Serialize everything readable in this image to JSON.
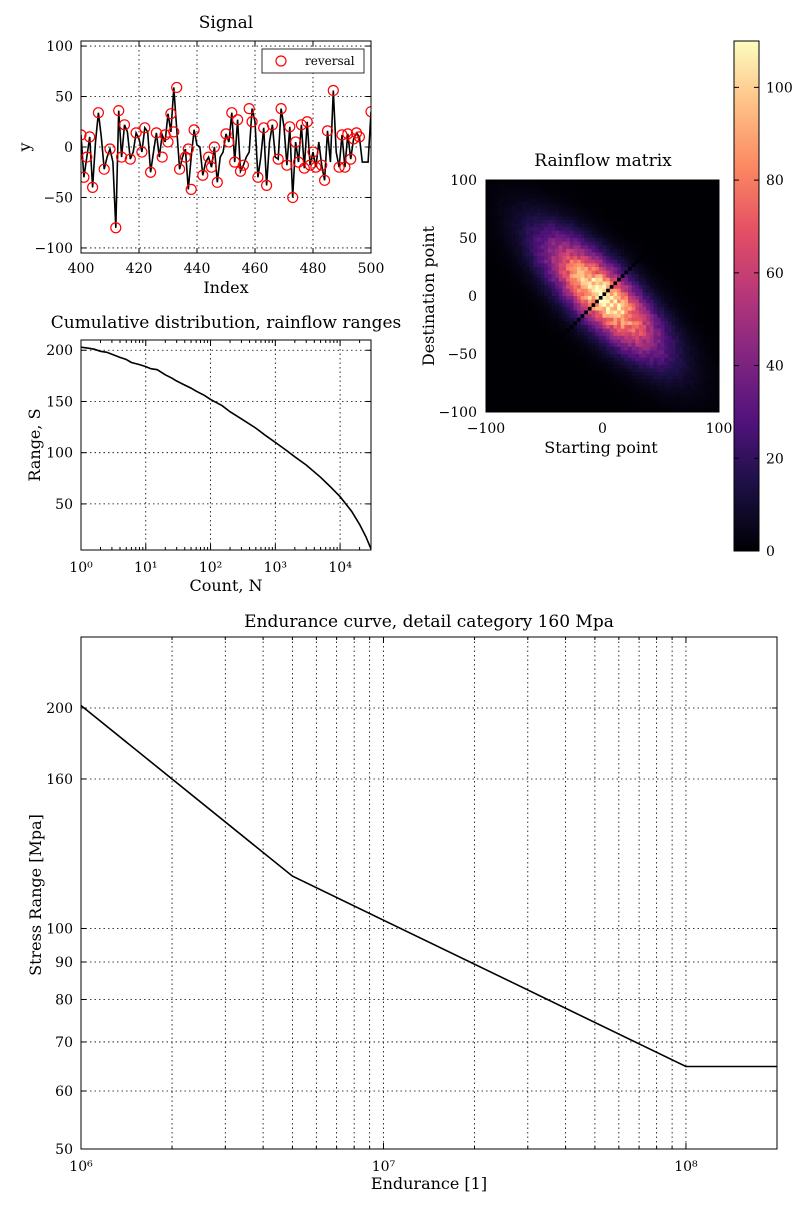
{
  "chart_data": [
    {
      "id": "signal",
      "type": "line",
      "title": "Signal",
      "xlabel": "Index",
      "ylabel": "y",
      "xlim": [
        400,
        500
      ],
      "ylim": [
        -105,
        105
      ],
      "x_ticks": [
        400,
        420,
        440,
        460,
        480,
        500
      ],
      "y_ticks": [
        100,
        50,
        0,
        -50,
        -100
      ],
      "x_tick_labels": [
        "400",
        "420",
        "440",
        "460",
        "480",
        "500"
      ],
      "y_tick_labels": [
        "100",
        "50",
        "0",
        "−50",
        "−100"
      ],
      "grid": true,
      "legend": {
        "position": "top-right",
        "entries": [
          "reversal"
        ]
      },
      "series": [
        {
          "name": "signal",
          "color": "#000000",
          "x": [
            400,
            401,
            402,
            403,
            404,
            405,
            406,
            407,
            408,
            409,
            410,
            411,
            412,
            413,
            414,
            415,
            416,
            417,
            418,
            419,
            420,
            421,
            422,
            423,
            424,
            425,
            426,
            427,
            428,
            429,
            430,
            431,
            432,
            433,
            434,
            435,
            436,
            437,
            438,
            439,
            440,
            441,
            442,
            443,
            444,
            445,
            446,
            447,
            448,
            449,
            450,
            451,
            452,
            453,
            454,
            455,
            456,
            457,
            458,
            459,
            460,
            461,
            462,
            463,
            464,
            465,
            466,
            467,
            468,
            469,
            470,
            471,
            472,
            473,
            474,
            475,
            476,
            477,
            478,
            479,
            480,
            481,
            482,
            483,
            484,
            485,
            486,
            487,
            488,
            489,
            490,
            491,
            492,
            493,
            494,
            495,
            496,
            497,
            498,
            499,
            500
          ],
          "y": [
            12,
            -30,
            -10,
            10,
            -40,
            5,
            34,
            10,
            -22,
            -10,
            -2,
            -15,
            -80,
            36,
            -10,
            22,
            15,
            -12,
            -5,
            14,
            8,
            -5,
            19,
            15,
            -25,
            -5,
            14,
            -10,
            12,
            5,
            33,
            15,
            59,
            18,
            -22,
            -10,
            -2,
            -42,
            -10,
            17,
            2,
            0,
            -28,
            -15,
            -10,
            -20,
            0,
            -35,
            -10,
            -5,
            13,
            5,
            34,
            -15,
            27,
            -24,
            -18,
            -10,
            -5,
            38,
            25,
            -30,
            -10,
            19,
            -38,
            5,
            22,
            -10,
            -12,
            38,
            20,
            -18,
            20,
            -50,
            5,
            -15,
            22,
            -21,
            25,
            -18,
            -5,
            -20,
            5,
            -18,
            -33,
            16,
            -15,
            56,
            -5,
            -20,
            12,
            -20,
            13,
            -12,
            8,
            14,
            10,
            -15,
            -15,
            -15,
            35
          ]
        },
        {
          "name": "reversal",
          "color": "#ff0000",
          "x": [
            400,
            401,
            402,
            403,
            404,
            406,
            408,
            410,
            412,
            413,
            414,
            415,
            417,
            419,
            421,
            422,
            424,
            426,
            428,
            429,
            430,
            431,
            432,
            433,
            434,
            436,
            437,
            438,
            439,
            442,
            444,
            445,
            446,
            447,
            450,
            451,
            452,
            453,
            454,
            455,
            456,
            458,
            459,
            461,
            463,
            464,
            466,
            468,
            469,
            471,
            472,
            473,
            474,
            475,
            476,
            477,
            478,
            479,
            480,
            481,
            483,
            484,
            485,
            487,
            489,
            490,
            491,
            492,
            493,
            494,
            495,
            496,
            500
          ],
          "y": [
            12,
            -30,
            -10,
            10,
            -40,
            34,
            -22,
            -2,
            -80,
            36,
            -10,
            22,
            -12,
            14,
            -5,
            19,
            -25,
            14,
            -10,
            12,
            5,
            33,
            15,
            59,
            -22,
            -10,
            -2,
            -42,
            17,
            -28,
            -10,
            -20,
            0,
            -35,
            13,
            5,
            34,
            -15,
            27,
            -24,
            -18,
            38,
            25,
            -30,
            19,
            -38,
            22,
            -12,
            38,
            -18,
            20,
            -50,
            5,
            -15,
            22,
            -21,
            25,
            -18,
            -5,
            -20,
            -18,
            -33,
            16,
            56,
            -20,
            12,
            -20,
            13,
            -12,
            8,
            14,
            10,
            35
          ]
        }
      ]
    },
    {
      "id": "cumulative",
      "type": "line",
      "title": "Cumulative distribution, rainflow ranges",
      "xlabel": "Count, N",
      "ylabel": "Range, S",
      "xscale": "log",
      "xlim": [
        1,
        30000
      ],
      "ylim": [
        5,
        210
      ],
      "x_ticks": [
        1,
        10,
        100,
        1000,
        10000
      ],
      "x_tick_labels": [
        "10⁰",
        "10¹",
        "10²",
        "10³",
        "10⁴"
      ],
      "y_ticks": [
        200,
        150,
        100,
        50
      ],
      "y_tick_labels": [
        "200",
        "150",
        "100",
        "50"
      ],
      "grid": true,
      "series": [
        {
          "name": "cumulative",
          "color": "#000000",
          "x": [
            1,
            1.3,
            1.6,
            2,
            2.5,
            3,
            4,
            5,
            6,
            8,
            10,
            12,
            15,
            20,
            25,
            30,
            40,
            50,
            60,
            80,
            100,
            150,
            200,
            300,
            500,
            700,
            1000,
            1500,
            2000,
            3000,
            5000,
            7000,
            10000,
            15000,
            20000,
            25000,
            30000
          ],
          "y": [
            203,
            202,
            201,
            199,
            198,
            196,
            193,
            191,
            188,
            186,
            184,
            182,
            181,
            176,
            173,
            170,
            166,
            163,
            160,
            156,
            152,
            146,
            140,
            133,
            124,
            117,
            110,
            102,
            96,
            88,
            76,
            67,
            57,
            43,
            30,
            18,
            6
          ]
        }
      ]
    },
    {
      "id": "rainflow-matrix",
      "type": "heatmap",
      "title": "Rainflow matrix",
      "xlabel": "Starting point",
      "ylabel": "Destination point",
      "xlim": [
        -100,
        100
      ],
      "ylim": [
        -100,
        100
      ],
      "bins": 64,
      "x_ticks": [
        -100,
        0,
        100
      ],
      "x_tick_labels": [
        "−100",
        "0",
        "100"
      ],
      "y_ticks": [
        100,
        50,
        0,
        -50,
        -100
      ],
      "y_tick_labels": [
        "100",
        "50",
        "0",
        "−50",
        "−100"
      ],
      "colormap": "magma",
      "colorbar": {
        "range": [
          0,
          110
        ],
        "ticks": [
          0,
          20,
          40,
          60,
          80,
          100
        ],
        "tick_labels": [
          "0",
          "20",
          "40",
          "60",
          "80",
          "100"
        ]
      },
      "distribution": {
        "center": [
          0,
          0
        ],
        "major_axis": "anti-diagonal",
        "sigma_major": 45,
        "sigma_minor": 16,
        "peak": 108,
        "lobes": [
          [
            -25,
            25
          ],
          [
            25,
            -25
          ]
        ],
        "diagonal_zero": true
      }
    },
    {
      "id": "endurance",
      "type": "line",
      "title": "Endurance curve, detail category 160 Mpa",
      "xlabel": "Endurance [1]",
      "ylabel": "Stress Range [Mpa]",
      "xscale": "log",
      "yscale": "log",
      "xlim": [
        1000000,
        200000000
      ],
      "ylim": [
        50,
        250
      ],
      "x_ticks": [
        1000000,
        10000000,
        100000000
      ],
      "x_tick_labels": [
        "10⁶",
        "10⁷",
        "10⁸"
      ],
      "y_ticks": [
        200,
        160,
        100,
        90,
        80,
        70,
        60,
        50
      ],
      "y_tick_labels": [
        "200",
        "160",
        "100",
        "90",
        "80",
        "70",
        "60",
        "50"
      ],
      "grid": true,
      "series": [
        {
          "name": "endurance",
          "color": "#000000",
          "x": [
            1000000,
            5000000,
            100000000,
            200000000
          ],
          "y": [
            201.6,
            117.9,
            64.8,
            64.8
          ]
        }
      ]
    }
  ]
}
